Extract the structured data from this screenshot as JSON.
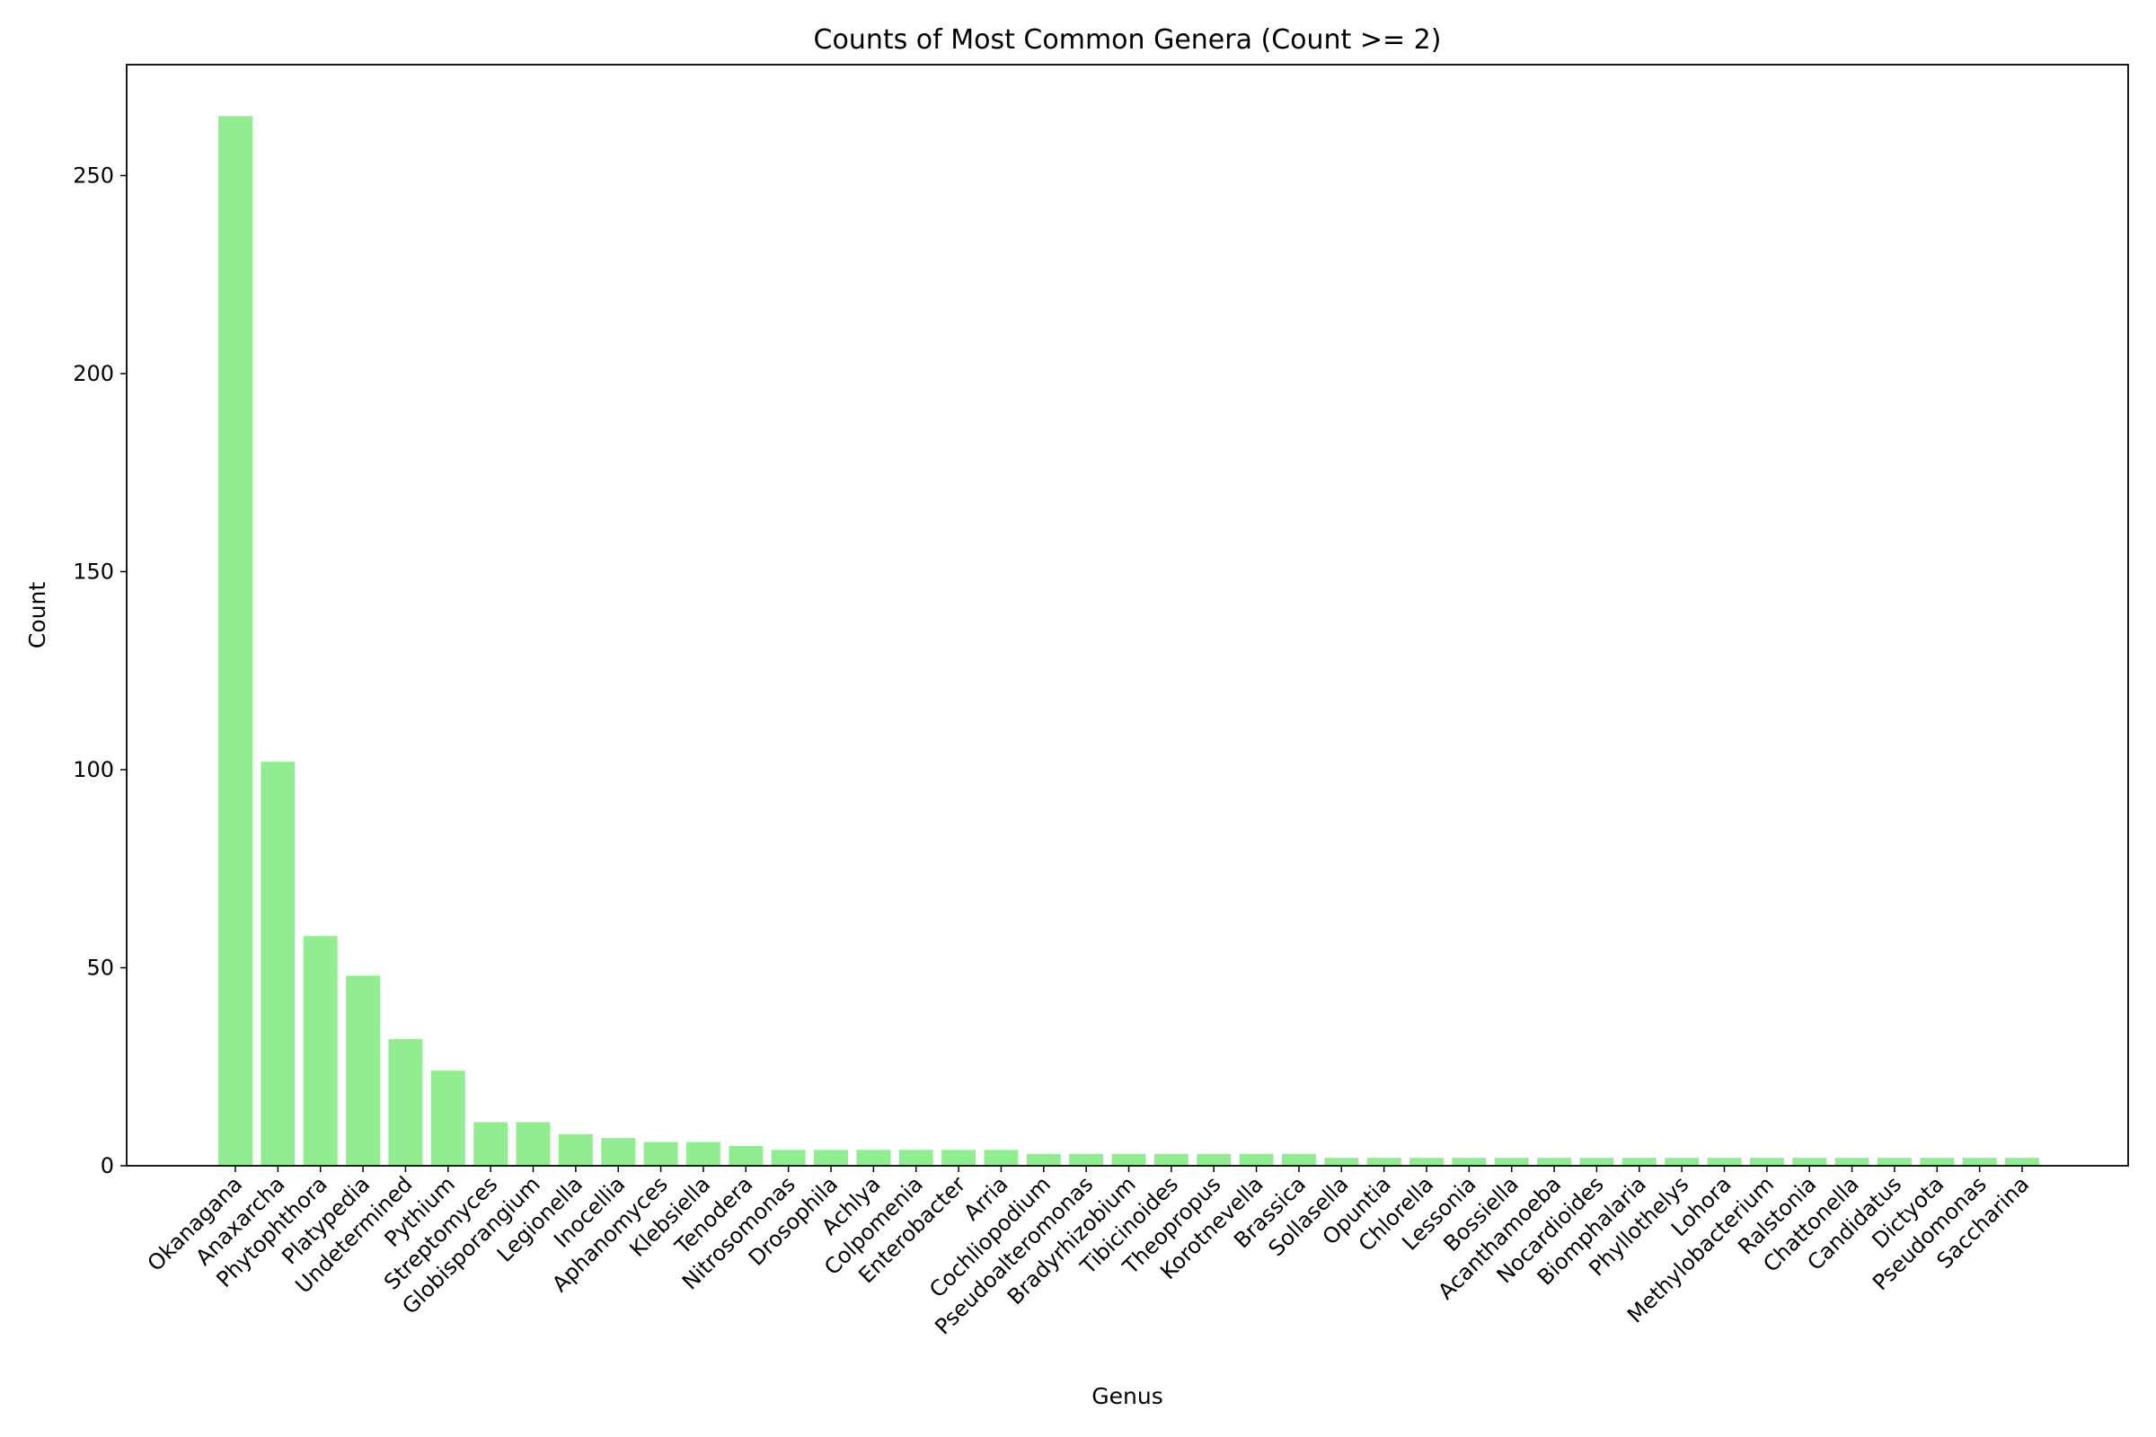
{
  "chart_data": {
    "type": "bar",
    "title": "Counts of Most Common Genera (Count >= 2)",
    "xlabel": "Genus",
    "ylabel": "Count",
    "ylim": [
      0,
      278
    ],
    "yticks": [
      0,
      50,
      100,
      150,
      200,
      250
    ],
    "bar_color": "#90ee90",
    "grid": false,
    "categories": [
      "Okanagana",
      "Anaxarcha",
      "Phytophthora",
      "Platypedia",
      "Undetermined",
      "Pythium",
      "Streptomyces",
      "Globisporangium",
      "Legionella",
      "Inocellia",
      "Aphanomyces",
      "Klebsiella",
      "Tenodera",
      "Nitrosomonas",
      "Drosophila",
      "Achlya",
      "Colpomenia",
      "Enterobacter",
      "Arria",
      "Cochliopodium",
      "Pseudoalteromonas",
      "Bradyrhizobium",
      "Tibicinoides",
      "Theopropus",
      "Korotnevella",
      "Brassica",
      "Sollasella",
      "Opuntia",
      "Chlorella",
      "Lessonia",
      "Bossiella",
      "Acanthamoeba",
      "Nocardioides",
      "Biomphalaria",
      "Phyllothelys",
      "Lohora",
      "Methylobacterium",
      "Ralstonia",
      "Chattonella",
      "Candidatus",
      "Dictyota",
      "Pseudomonas",
      "Saccharina"
    ],
    "values": [
      265,
      102,
      58,
      48,
      32,
      24,
      11,
      11,
      8,
      7,
      6,
      6,
      5,
      4,
      4,
      4,
      4,
      4,
      4,
      3,
      3,
      3,
      3,
      3,
      3,
      3,
      2,
      2,
      2,
      2,
      2,
      2,
      2,
      2,
      2,
      2,
      2,
      2,
      2,
      2,
      2,
      2,
      2
    ]
  }
}
